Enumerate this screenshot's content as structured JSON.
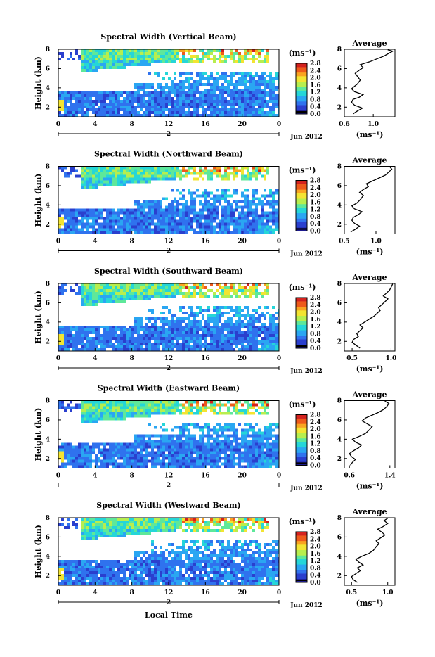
{
  "figure": {
    "common_xlabel": "Local Time",
    "date_label": "Jun 2012",
    "day_label": "2",
    "x_ticks": [
      "0",
      "4",
      "8",
      "12",
      "16",
      "20",
      "0"
    ],
    "y_ticks": [
      "2",
      "4",
      "6",
      "8"
    ],
    "main_ylabel": "Height (km)",
    "colorbar_unit": "(ms⁻¹)",
    "colorbar_ticks": [
      "0.0",
      "0.4",
      "0.8",
      "1.2",
      "1.6",
      "2.0",
      "2.4",
      "2.8"
    ],
    "avg_title": "Average",
    "avg_xlabel": "(ms⁻¹)"
  },
  "colors": {
    "colormap": [
      "#1d1a8e",
      "#2a3fce",
      "#2f72ee",
      "#2aa6f2",
      "#25d6d8",
      "#5ee89a",
      "#b7ee4e",
      "#f3e431",
      "#f9a421",
      "#ee5a1b",
      "#d3211d"
    ]
  },
  "chart_data": [
    {
      "type": "heatmap",
      "title": "Spectral Width (Vertical Beam)",
      "x_range": [
        0,
        24
      ],
      "y_range": [
        1,
        8
      ],
      "z_range": [
        0.0,
        2.8
      ],
      "avg_profile": {
        "title": "Average",
        "tick_labels": [
          "0.6",
          "1.0"
        ],
        "xlim": [
          0.6,
          1.3
        ],
        "ylim": [
          1,
          8
        ],
        "points": [
          [
            0.72,
            1.3
          ],
          [
            0.78,
            1.6
          ],
          [
            0.85,
            1.9
          ],
          [
            0.74,
            2.2
          ],
          [
            0.7,
            2.5
          ],
          [
            0.72,
            2.8
          ],
          [
            0.8,
            3.0
          ],
          [
            0.86,
            3.3
          ],
          [
            0.74,
            3.6
          ],
          [
            0.7,
            3.9
          ],
          [
            0.73,
            4.1
          ],
          [
            0.78,
            4.4
          ],
          [
            0.82,
            4.8
          ],
          [
            0.78,
            5.2
          ],
          [
            0.75,
            5.5
          ],
          [
            0.8,
            5.8
          ],
          [
            0.86,
            6.1
          ],
          [
            0.82,
            6.4
          ],
          [
            0.95,
            6.7
          ],
          [
            1.05,
            7.0
          ],
          [
            1.15,
            7.3
          ],
          [
            1.22,
            7.6
          ],
          [
            1.27,
            7.8
          ],
          [
            1.2,
            7.95
          ]
        ]
      }
    },
    {
      "type": "heatmap",
      "title": "Spectral Width (Northward Beam)",
      "x_range": [
        0,
        24
      ],
      "y_range": [
        1,
        8
      ],
      "z_range": [
        0.0,
        2.8
      ],
      "avg_profile": {
        "title": "Average",
        "tick_labels": [
          "0.5",
          "1.0"
        ],
        "xlim": [
          0.5,
          1.3
        ],
        "ylim": [
          1,
          8
        ],
        "points": [
          [
            0.6,
            1.2
          ],
          [
            0.68,
            1.5
          ],
          [
            0.74,
            1.8
          ],
          [
            0.66,
            2.1
          ],
          [
            0.62,
            2.4
          ],
          [
            0.64,
            2.7
          ],
          [
            0.72,
            3.0
          ],
          [
            0.78,
            3.3
          ],
          [
            0.66,
            3.6
          ],
          [
            0.62,
            3.9
          ],
          [
            0.7,
            4.2
          ],
          [
            0.76,
            4.6
          ],
          [
            0.8,
            5.0
          ],
          [
            0.74,
            5.3
          ],
          [
            0.8,
            5.6
          ],
          [
            0.88,
            5.9
          ],
          [
            0.85,
            6.2
          ],
          [
            0.95,
            6.5
          ],
          [
            1.05,
            6.8
          ],
          [
            1.15,
            7.1
          ],
          [
            1.2,
            7.4
          ],
          [
            1.25,
            7.7
          ],
          [
            1.22,
            7.95
          ]
        ]
      }
    },
    {
      "type": "heatmap",
      "title": "Spectral Width (Southward Beam)",
      "x_range": [
        0,
        24
      ],
      "y_range": [
        1,
        8
      ],
      "z_range": [
        0.0,
        2.8
      ],
      "avg_profile": {
        "title": "Average",
        "tick_labels": [
          "0.5",
          "1.0"
        ],
        "xlim": [
          0.4,
          1.05
        ],
        "ylim": [
          1,
          8
        ],
        "points": [
          [
            0.6,
            1.3
          ],
          [
            0.55,
            1.6
          ],
          [
            0.5,
            1.9
          ],
          [
            0.52,
            2.2
          ],
          [
            0.58,
            2.5
          ],
          [
            0.56,
            2.8
          ],
          [
            0.6,
            3.1
          ],
          [
            0.64,
            3.4
          ],
          [
            0.6,
            3.7
          ],
          [
            0.66,
            4.0
          ],
          [
            0.72,
            4.3
          ],
          [
            0.78,
            4.6
          ],
          [
            0.82,
            4.9
          ],
          [
            0.86,
            5.2
          ],
          [
            0.84,
            5.5
          ],
          [
            0.88,
            5.8
          ],
          [
            0.92,
            6.1
          ],
          [
            0.96,
            6.4
          ],
          [
            0.9,
            6.7
          ],
          [
            0.94,
            7.0
          ],
          [
            0.98,
            7.3
          ],
          [
            1.0,
            7.6
          ],
          [
            1.02,
            7.95
          ]
        ]
      }
    },
    {
      "type": "heatmap",
      "title": "Spectral Width (Eastward Beam)",
      "x_range": [
        0,
        24
      ],
      "y_range": [
        1,
        8
      ],
      "z_range": [
        0.0,
        2.8
      ],
      "avg_profile": {
        "title": "Average",
        "tick_labels": [
          "0.6",
          "1.4"
        ],
        "xlim": [
          0.5,
          1.5
        ],
        "ylim": [
          1,
          8
        ],
        "points": [
          [
            0.62,
            1.3
          ],
          [
            0.66,
            1.6
          ],
          [
            0.72,
            1.9
          ],
          [
            0.64,
            2.2
          ],
          [
            0.6,
            2.5
          ],
          [
            0.68,
            2.8
          ],
          [
            0.78,
            3.1
          ],
          [
            0.84,
            3.4
          ],
          [
            0.72,
            3.7
          ],
          [
            0.66,
            4.0
          ],
          [
            0.8,
            4.3
          ],
          [
            0.92,
            4.6
          ],
          [
            1.0,
            5.0
          ],
          [
            1.05,
            5.3
          ],
          [
            0.95,
            5.6
          ],
          [
            0.85,
            5.9
          ],
          [
            0.92,
            6.2
          ],
          [
            1.05,
            6.5
          ],
          [
            1.18,
            6.8
          ],
          [
            1.28,
            7.1
          ],
          [
            1.34,
            7.4
          ],
          [
            1.38,
            7.7
          ],
          [
            1.3,
            7.95
          ]
        ]
      }
    },
    {
      "type": "heatmap",
      "title": "Spectral Width (Westward Beam)",
      "x_range": [
        0,
        24
      ],
      "y_range": [
        1,
        8
      ],
      "z_range": [
        0.0,
        2.8
      ],
      "avg_profile": {
        "title": "Average",
        "tick_labels": [
          "0.5",
          "1.0"
        ],
        "xlim": [
          0.4,
          1.1
        ],
        "ylim": [
          1,
          8
        ],
        "points": [
          [
            0.58,
            1.3
          ],
          [
            0.52,
            1.6
          ],
          [
            0.5,
            1.9
          ],
          [
            0.56,
            2.2
          ],
          [
            0.62,
            2.5
          ],
          [
            0.58,
            2.8
          ],
          [
            0.66,
            3.1
          ],
          [
            0.6,
            3.4
          ],
          [
            0.56,
            3.7
          ],
          [
            0.64,
            4.0
          ],
          [
            0.74,
            4.3
          ],
          [
            0.8,
            4.6
          ],
          [
            0.84,
            5.0
          ],
          [
            0.88,
            5.3
          ],
          [
            0.84,
            5.6
          ],
          [
            0.9,
            5.9
          ],
          [
            0.96,
            6.2
          ],
          [
            0.92,
            6.5
          ],
          [
            0.86,
            6.8
          ],
          [
            0.94,
            7.1
          ],
          [
            1.0,
            7.4
          ],
          [
            0.95,
            7.7
          ],
          [
            1.0,
            7.95
          ]
        ]
      }
    }
  ]
}
